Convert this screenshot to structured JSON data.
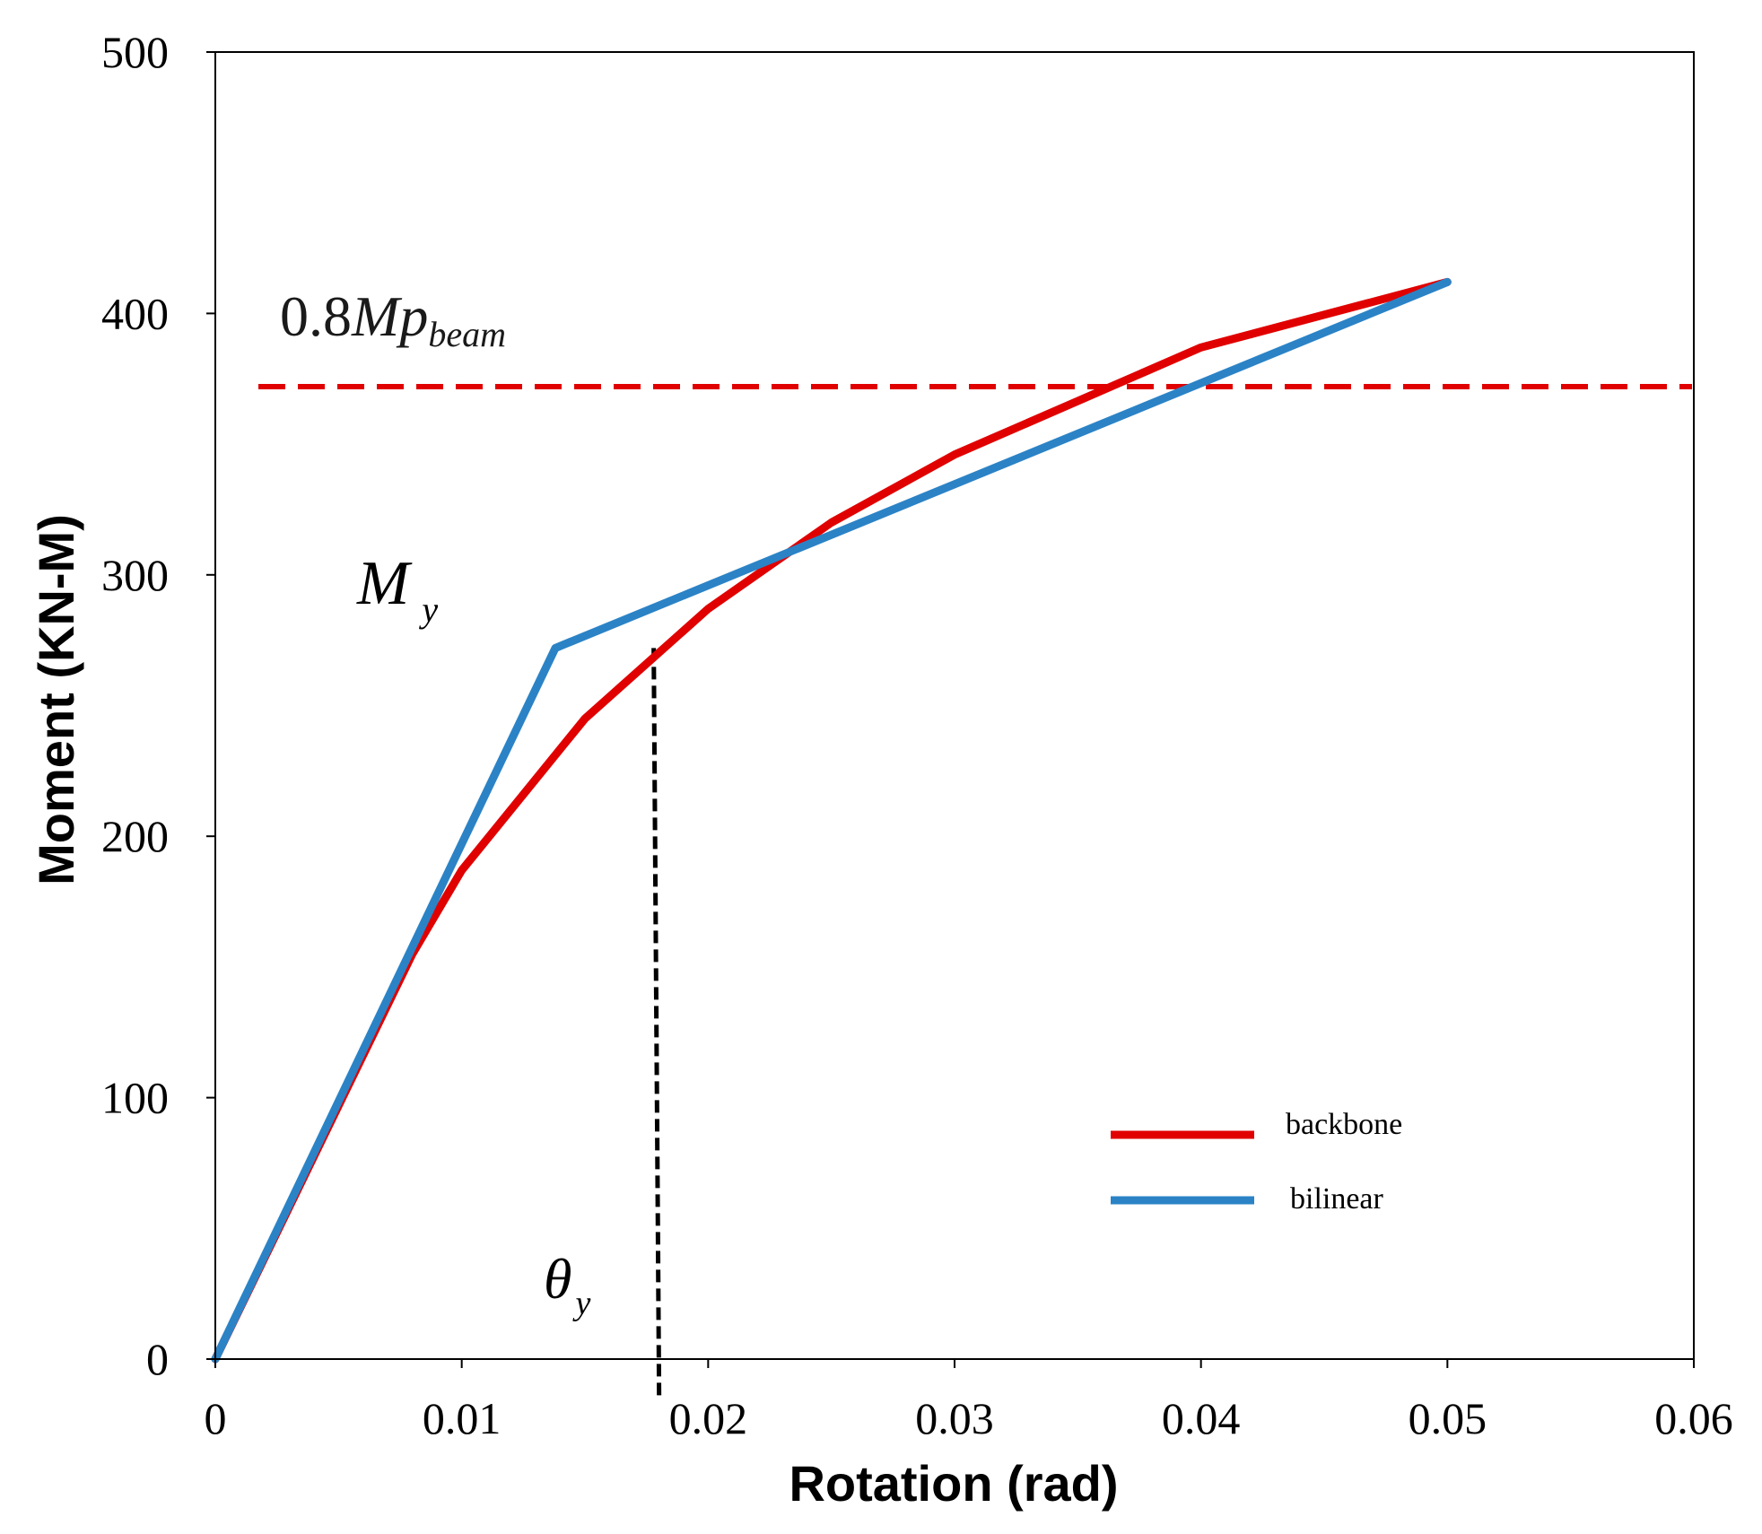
{
  "chart_data": {
    "type": "line",
    "xlabel": "Rotation (rad)",
    "ylabel": "Moment (KN-M)",
    "xlim": [
      0,
      0.06
    ],
    "ylim": [
      0,
      500
    ],
    "x_ticks": [
      "0",
      "0.01",
      "0.02",
      "0.03",
      "0.04",
      "0.05",
      "0.06"
    ],
    "y_ticks": [
      "0",
      "100",
      "200",
      "300",
      "400",
      "500"
    ],
    "grid": false,
    "legend_position": "lower-right",
    "series": [
      {
        "name": "backbone",
        "color": "#e00000",
        "points": [
          [
            0,
            0
          ],
          [
            0.008,
            155
          ],
          [
            0.01,
            187
          ],
          [
            0.015,
            245
          ],
          [
            0.02,
            287
          ],
          [
            0.025,
            320
          ],
          [
            0.03,
            346
          ],
          [
            0.04,
            387
          ],
          [
            0.05,
            412
          ]
        ]
      },
      {
        "name": "bilinear",
        "color": "#2b83c6",
        "points": [
          [
            0,
            0
          ],
          [
            0.0138,
            272
          ],
          [
            0.05,
            412
          ]
        ]
      }
    ],
    "reference_lines": [
      {
        "type": "horizontal",
        "name": "0.8Mp_beam",
        "value": 372,
        "color": "#e00000",
        "style": "dashed"
      },
      {
        "type": "vertical",
        "name": "theta_y",
        "x": 0.0179,
        "y_top": 272,
        "y_bottom": -14,
        "color": "#000000",
        "style": "dashed"
      }
    ],
    "annotations": {
      "mp_base": "0.8",
      "mp_symbol": "Mp",
      "mp_sub": "beam",
      "my_symbol": "M",
      "my_sub": "y",
      "theta_symbol": "θ",
      "theta_sub": "y"
    }
  }
}
